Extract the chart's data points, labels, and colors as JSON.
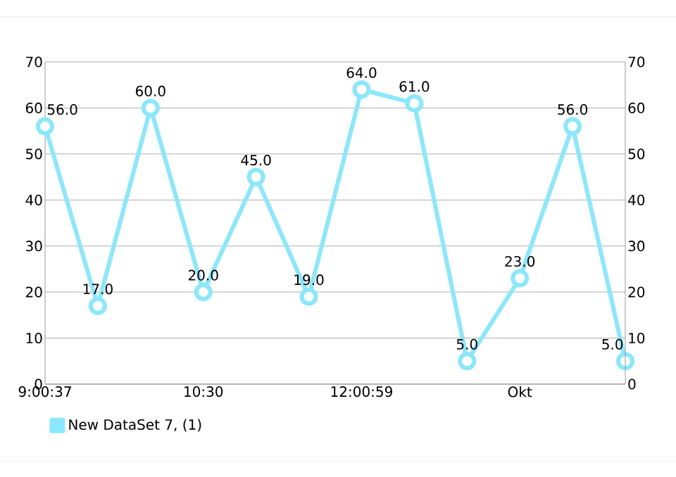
{
  "chart_data": {
    "type": "line",
    "categories": [
      "9:00:37",
      null,
      null,
      "10:30",
      null,
      null,
      "12:00:59",
      null,
      null,
      "Okt",
      null,
      null
    ],
    "series": [
      {
        "name": "New DataSet 7, (1)",
        "color": "#8ae8fc",
        "values": [
          56,
          17,
          60,
          20,
          45,
          19,
          64,
          61,
          5,
          23,
          56,
          5
        ],
        "value_labels": [
          "56.0",
          "17.0",
          "60.0",
          "20.0",
          "45.0",
          "19.0",
          "64.0",
          "61.0",
          "5.0",
          "23.0",
          "56.0",
          "5.0"
        ]
      }
    ],
    "ylim": [
      0,
      70
    ],
    "yticks": [
      0,
      10,
      20,
      30,
      40,
      50,
      60,
      70
    ],
    "y2lim": [
      0,
      70
    ],
    "y2ticks": [
      0,
      10,
      20,
      30,
      40,
      50,
      60,
      70
    ],
    "grid": "y",
    "legend": "bottom left",
    "marker": "circle",
    "line_style": "solid"
  }
}
